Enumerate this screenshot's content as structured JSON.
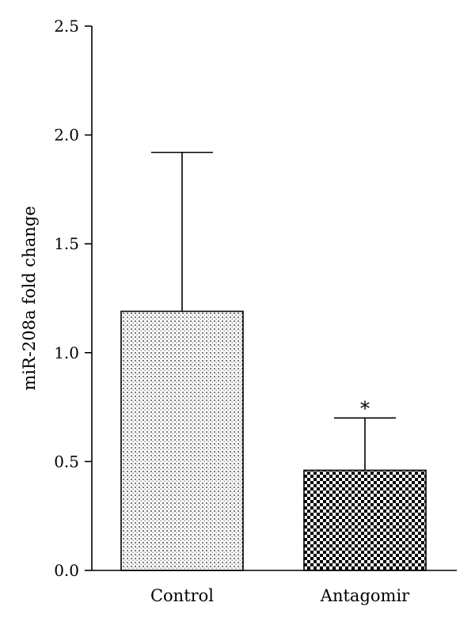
{
  "chart_data": {
    "type": "bar",
    "title": "",
    "xlabel": "",
    "ylabel": "miR-208a fold change",
    "ylim": [
      0,
      2.5
    ],
    "yticks": [
      "0.0",
      "0.5",
      "1.0",
      "1.5",
      "2.0",
      "2.5"
    ],
    "categories": [
      "Control",
      "Antagomir"
    ],
    "values": [
      1.19,
      0.46
    ],
    "error_upper": [
      1.92,
      0.7
    ],
    "patterns": [
      "dotted",
      "checkerboard"
    ],
    "annotations": [
      "",
      "*"
    ],
    "grid": false,
    "legend": "none"
  }
}
